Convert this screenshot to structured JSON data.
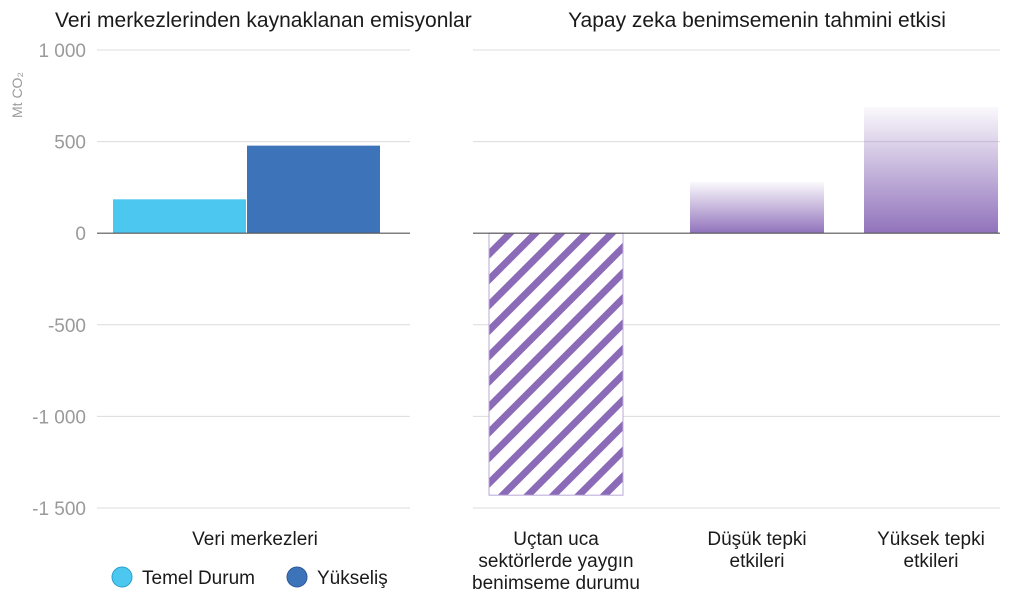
{
  "chart_data": [
    {
      "type": "bar",
      "title": "Veri merkezlerinden kaynaklanan emisyonlar",
      "ylabel": "Mt CO₂",
      "ylim": [
        -1500,
        1000
      ],
      "yticks": [
        1000,
        500,
        0,
        -500,
        -1000,
        -1500
      ],
      "ytick_labels": [
        "1 000",
        "500",
        "0",
        "-500",
        "-1 000",
        "-1 500"
      ],
      "grid": true,
      "categories": [
        "Veri merkezleri"
      ],
      "series": [
        {
          "name": "Temel Durum",
          "values": [
            185
          ],
          "color": "#4cc8f0"
        },
        {
          "name": "Yükseliş",
          "values": [
            478
          ],
          "color": "#3d73b9"
        }
      ],
      "legend_placement": "bottom"
    },
    {
      "type": "bar",
      "title": "Yapay zeka benimsemenin tahmini etkisi",
      "ylim": [
        -1500,
        1000
      ],
      "grid": true,
      "categories": [
        "Uçtan uca sektörlerde yaygın benimseme durumu",
        "Düşük tepki etkileri",
        "Yüksek tepki etkileri"
      ],
      "category_lines": [
        [
          "Uçtan uca",
          "sektörlerde yaygın",
          "benimseme durumu"
        ],
        [
          "Düşük tepki",
          "etkileri"
        ],
        [
          "Yüksek tepki",
          "etkileri"
        ]
      ],
      "values": [
        -1430,
        280,
        690
      ],
      "color": "#8b6bb8"
    }
  ]
}
